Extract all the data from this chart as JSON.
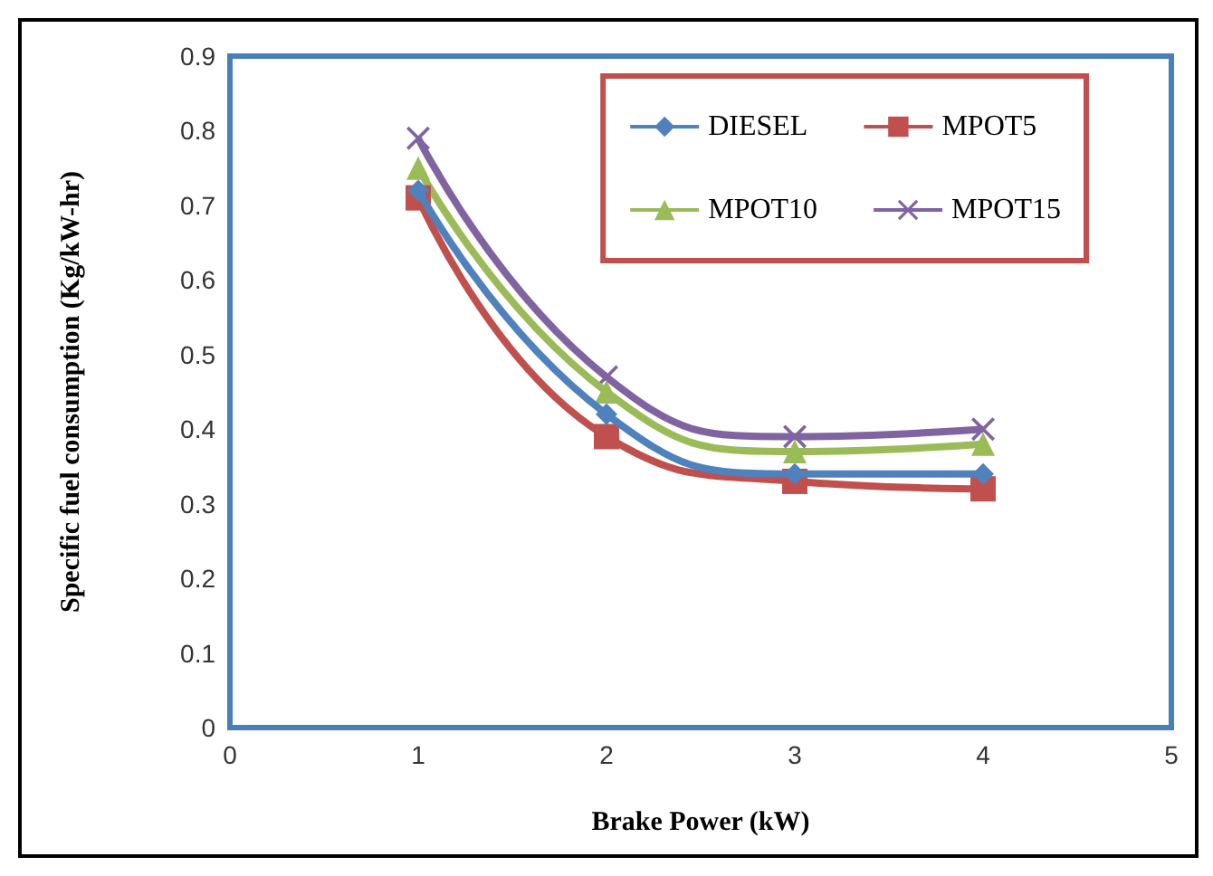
{
  "chart_data": {
    "type": "line",
    "xlabel": "Brake Power (kW)",
    "ylabel": "Specific fuel consumption (Kg/kW-hr)",
    "x": [
      1,
      2,
      3,
      4
    ],
    "series": [
      {
        "name": "DIESEL",
        "color": "#4f81bd",
        "marker": "diamond",
        "values": [
          0.72,
          0.42,
          0.34,
          0.34
        ]
      },
      {
        "name": "MPOT5",
        "color": "#c0504d",
        "marker": "square",
        "values": [
          0.71,
          0.39,
          0.33,
          0.32
        ]
      },
      {
        "name": "MPOT10",
        "color": "#9bbb59",
        "marker": "triangle",
        "values": [
          0.75,
          0.45,
          0.37,
          0.38
        ]
      },
      {
        "name": "MPOT15",
        "color": "#8064a2",
        "marker": "cross",
        "values": [
          0.79,
          0.47,
          0.39,
          0.4
        ]
      }
    ],
    "xlim": [
      0,
      5
    ],
    "xticks": [
      0,
      1,
      2,
      3,
      4,
      5
    ],
    "ylim": [
      0,
      0.9
    ],
    "yticks": [
      0,
      0.1,
      0.2,
      0.3,
      0.4,
      0.5,
      0.6,
      0.7,
      0.8,
      0.9
    ],
    "grid": false,
    "legend": "top right"
  }
}
